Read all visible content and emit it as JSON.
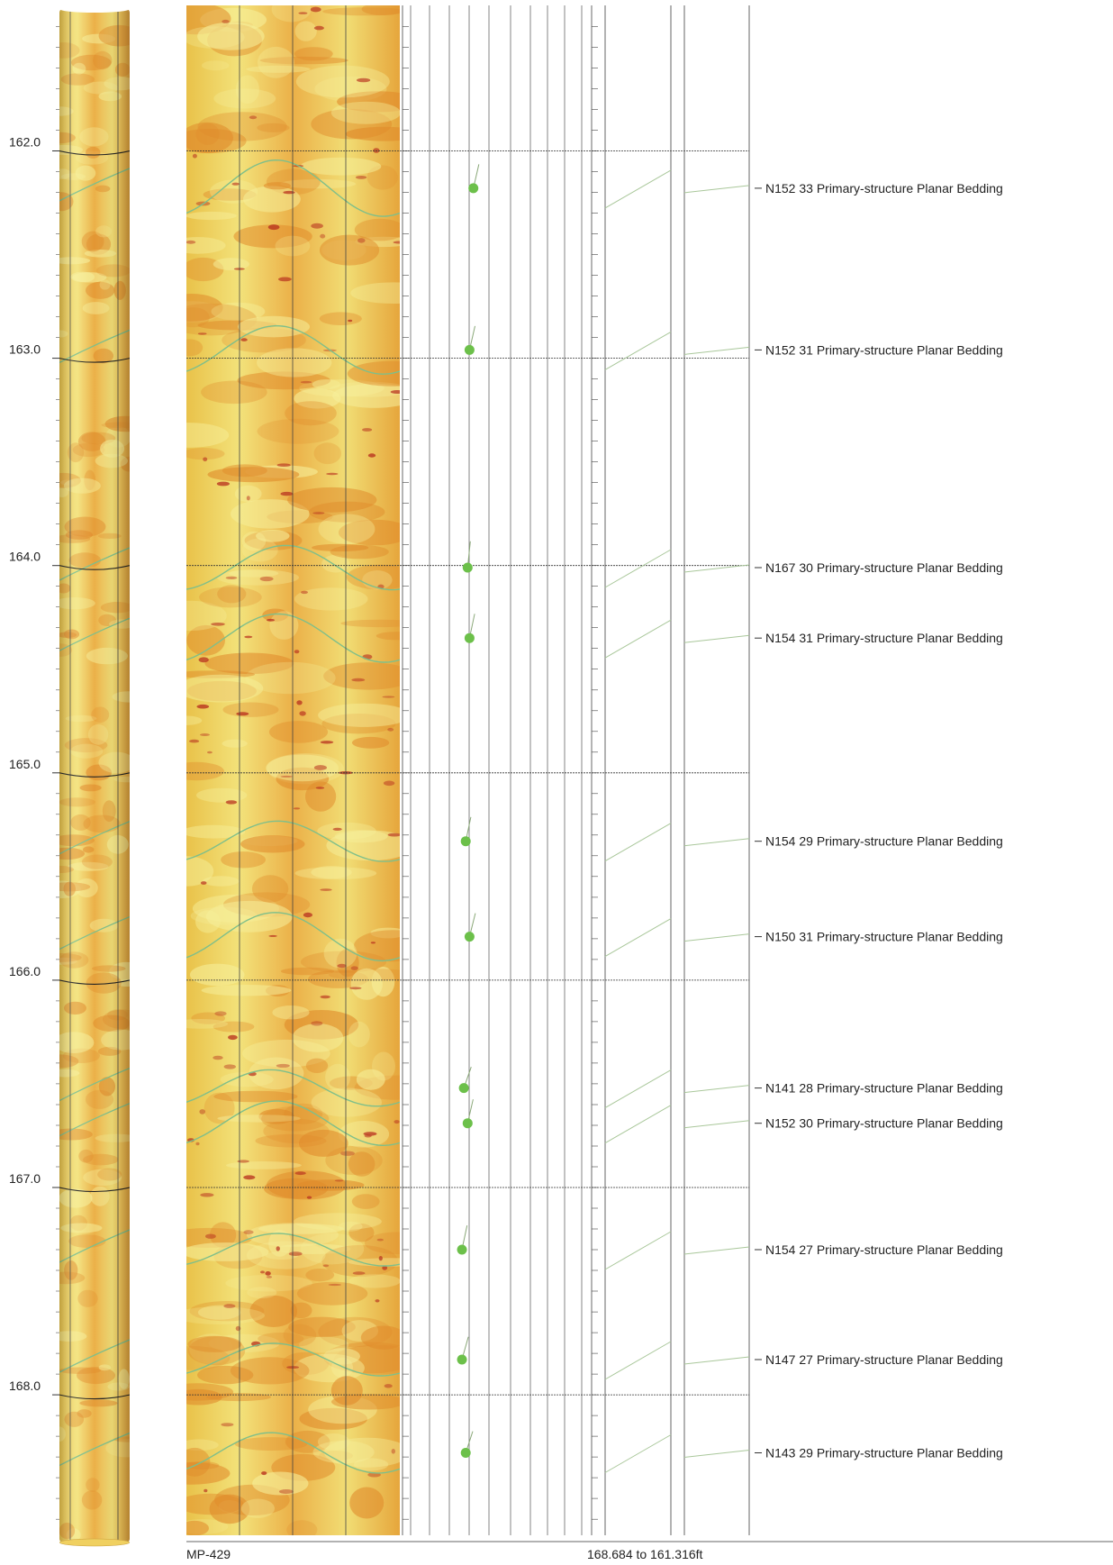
{
  "depth_axis": {
    "min": 161.316,
    "max": 168.684,
    "labels": [
      "162.0",
      "163.0",
      "164.0",
      "165.0",
      "166.0",
      "167.0",
      "168.0"
    ]
  },
  "footer": {
    "well_name": "MP-429",
    "depth_range": "168.684 to 161.316ft"
  },
  "colors": {
    "image_light": "#f2f07a",
    "image_dark": "#e08a2a",
    "dark_spots": "#b8321f",
    "sinusoid": "#7fbf8a",
    "tadpole": "#6cc04a",
    "grid": "#555555"
  },
  "features": [
    {
      "depth": 162.18,
      "azimuth": 152,
      "dip": 33,
      "label": "N152 33 Primary-structure Planar Bedding"
    },
    {
      "depth": 162.96,
      "azimuth": 152,
      "dip": 31,
      "label": "N152 31 Primary-structure Planar Bedding"
    },
    {
      "depth": 164.01,
      "azimuth": 167,
      "dip": 30,
      "label": "N167 30 Primary-structure Planar Bedding"
    },
    {
      "depth": 164.35,
      "azimuth": 154,
      "dip": 31,
      "label": "N154 31 Primary-structure Planar Bedding"
    },
    {
      "depth": 165.33,
      "azimuth": 154,
      "dip": 29,
      "label": "N154 29 Primary-structure Planar Bedding"
    },
    {
      "depth": 165.79,
      "azimuth": 150,
      "dip": 31,
      "label": "N150 31 Primary-structure Planar Bedding"
    },
    {
      "depth": 166.52,
      "azimuth": 141,
      "dip": 28,
      "label": "N141 28 Primary-structure Planar Bedding"
    },
    {
      "depth": 166.69,
      "azimuth": 152,
      "dip": 30,
      "label": "N152 30 Primary-structure Planar Bedding"
    },
    {
      "depth": 167.3,
      "azimuth": 154,
      "dip": 27,
      "label": "N154 27 Primary-structure Planar Bedding"
    },
    {
      "depth": 167.83,
      "azimuth": 147,
      "dip": 27,
      "label": "N147 27 Primary-structure Planar Bedding"
    },
    {
      "depth": 168.28,
      "azimuth": 143,
      "dip": 29,
      "label": "N143 29 Primary-structure Planar Bedding"
    }
  ]
}
